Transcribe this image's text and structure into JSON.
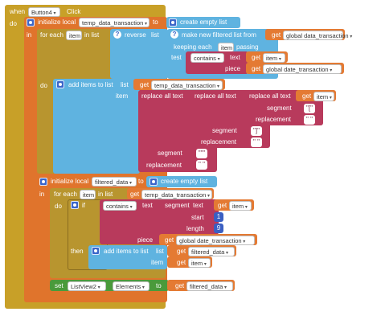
{
  "event": {
    "when": "when",
    "component": "Button4",
    "event": "Click",
    "do": "do"
  },
  "init1": {
    "initialize": "initialize local",
    "var": "temp_data_transaction",
    "to": "to",
    "in": "in"
  },
  "create1": {
    "label": "create empty list"
  },
  "foreach1": {
    "label": "for each",
    "var": "item",
    "in_list": "in list"
  },
  "reverse": {
    "label": "reverse",
    "list": "list"
  },
  "filter": {
    "label": "make new filtered list from",
    "keeping": "keeping each",
    "var": "item",
    "passing": "passing",
    "test": "test"
  },
  "get_global1": {
    "get": "get",
    "name": "global data_transaction"
  },
  "contains1": {
    "op": "contains",
    "text": "text",
    "piece": "piece"
  },
  "get_item1": {
    "get": "get",
    "name": "item"
  },
  "get_global2": {
    "get": "get",
    "name": "global date_transaction"
  },
  "do1": {
    "label": "do"
  },
  "additems1": {
    "label": "add items to list",
    "list": "list",
    "item": "item"
  },
  "get_temp1": {
    "get": "get",
    "name": "temp_data_transaction"
  },
  "replace_labels": {
    "replace_all": "replace all text",
    "segment": "segment",
    "replacement": "replacement"
  },
  "quote_vals": {
    "bracket_open": "[",
    "bracket_close": "]",
    "comma_quote": "\"",
    "empty": " "
  },
  "get_item2": {
    "get": "get",
    "name": "item"
  },
  "init2": {
    "initialize": "initialize local",
    "var": "filtered_data",
    "to": "to",
    "in": "in"
  },
  "create2": {
    "label": "create empty list"
  },
  "foreach2": {
    "label": "for each",
    "var": "item",
    "in_list": "in list"
  },
  "get_temp2": {
    "get": "get",
    "name": "temp_data_transaction"
  },
  "if_block": {
    "do": "do",
    "if": "if",
    "then": "then"
  },
  "contains2": {
    "op": "contains",
    "text": "text",
    "piece": "piece"
  },
  "segment_block": {
    "label": "segment",
    "text": "text",
    "start": "start",
    "length": "length",
    "start_val": "1",
    "length_val": "9"
  },
  "get_item3": {
    "get": "get",
    "name": "item"
  },
  "get_global3": {
    "get": "get",
    "name": "global date_transaction"
  },
  "additems2": {
    "label": "add items to list",
    "list": "list",
    "item": "item"
  },
  "get_filtered1": {
    "get": "get",
    "name": "filtered_data"
  },
  "get_item4": {
    "get": "get",
    "name": "item"
  },
  "setter": {
    "set": "set",
    "component": "ListView2",
    "property": "Elements",
    "to": "to"
  },
  "get_filtered2": {
    "get": "get",
    "name": "filtered_data"
  },
  "colors": {
    "event": "#c8a028",
    "local": "#e0742c",
    "control": "#b8952f",
    "list": "#5fb3e0",
    "text": "#b83a5c",
    "getter": "#e47a33",
    "math": "#3b5fc2",
    "component": "#4a9a3b"
  }
}
